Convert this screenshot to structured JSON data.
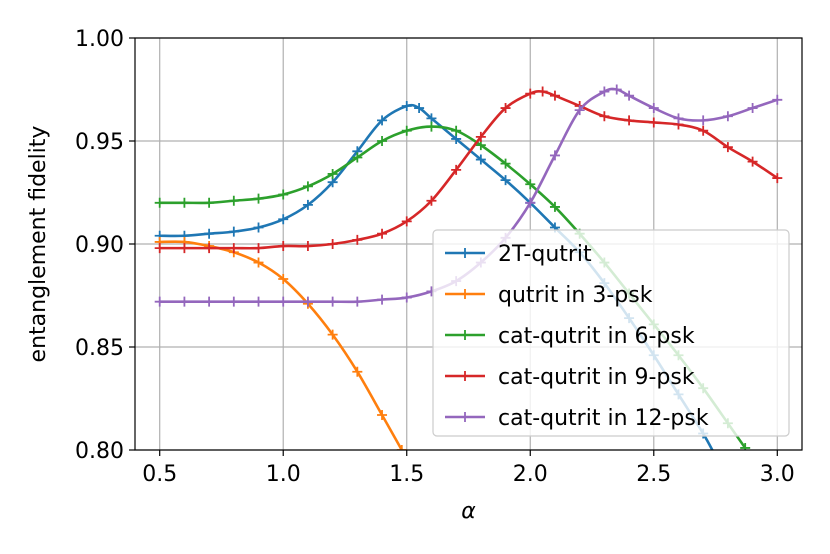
{
  "chart_data": {
    "type": "line",
    "title": "",
    "xlabel": "α",
    "ylabel": "entanglement fidelity",
    "xlim": [
      0.4,
      3.1
    ],
    "ylim": [
      0.8,
      1.0
    ],
    "xticks": [
      0.5,
      1.0,
      1.5,
      2.0,
      2.5,
      3.0
    ],
    "xtick_labels": [
      "0.5",
      "1.0",
      "1.5",
      "2.0",
      "2.5",
      "3.0"
    ],
    "yticks": [
      0.8,
      0.85,
      0.9,
      0.95,
      1.0
    ],
    "ytick_labels": [
      "0.80",
      "0.85",
      "0.90",
      "0.95",
      "1.00"
    ],
    "grid": true,
    "legend_position": "lower-right",
    "marker": "+",
    "series": [
      {
        "name": "2T-qutrit",
        "color": "#1f77b4",
        "x": [
          0.5,
          0.6,
          0.7,
          0.8,
          0.9,
          1.0,
          1.1,
          1.2,
          1.3,
          1.4,
          1.5,
          1.55,
          1.6,
          1.7,
          1.8,
          1.9,
          2.0,
          2.1,
          2.2,
          2.3,
          2.4,
          2.5,
          2.6,
          2.7,
          2.75
        ],
        "y": [
          0.904,
          0.904,
          0.905,
          0.906,
          0.908,
          0.912,
          0.919,
          0.93,
          0.945,
          0.96,
          0.967,
          0.966,
          0.961,
          0.951,
          0.941,
          0.931,
          0.92,
          0.908,
          0.896,
          0.881,
          0.864,
          0.846,
          0.827,
          0.808,
          0.797
        ]
      },
      {
        "name": "qutrit in 3-psk",
        "color": "#ff7f0e",
        "x": [
          0.5,
          0.6,
          0.7,
          0.8,
          0.9,
          1.0,
          1.1,
          1.2,
          1.3,
          1.4,
          1.48
        ],
        "y": [
          0.901,
          0.901,
          0.899,
          0.896,
          0.891,
          0.883,
          0.871,
          0.856,
          0.838,
          0.817,
          0.8
        ]
      },
      {
        "name": "cat-qutrit in 6-psk",
        "color": "#2ca02c",
        "x": [
          0.5,
          0.6,
          0.7,
          0.8,
          0.9,
          1.0,
          1.1,
          1.2,
          1.3,
          1.4,
          1.5,
          1.6,
          1.7,
          1.8,
          1.9,
          2.0,
          2.1,
          2.2,
          2.3,
          2.4,
          2.5,
          2.6,
          2.7,
          2.8,
          2.87
        ],
        "y": [
          0.92,
          0.92,
          0.92,
          0.921,
          0.922,
          0.924,
          0.928,
          0.934,
          0.942,
          0.95,
          0.955,
          0.957,
          0.955,
          0.948,
          0.939,
          0.929,
          0.918,
          0.905,
          0.891,
          0.876,
          0.861,
          0.846,
          0.83,
          0.813,
          0.801
        ]
      },
      {
        "name": "cat-qutrit in 9-psk",
        "color": "#d62728",
        "x": [
          0.5,
          0.6,
          0.7,
          0.8,
          0.9,
          1.0,
          1.1,
          1.2,
          1.3,
          1.4,
          1.5,
          1.6,
          1.7,
          1.8,
          1.9,
          2.0,
          2.05,
          2.1,
          2.2,
          2.3,
          2.4,
          2.5,
          2.6,
          2.7,
          2.8,
          2.9,
          3.0
        ],
        "y": [
          0.898,
          0.898,
          0.898,
          0.898,
          0.898,
          0.899,
          0.899,
          0.9,
          0.902,
          0.905,
          0.911,
          0.921,
          0.936,
          0.952,
          0.966,
          0.973,
          0.974,
          0.972,
          0.967,
          0.962,
          0.96,
          0.959,
          0.958,
          0.955,
          0.947,
          0.94,
          0.932
        ]
      },
      {
        "name": "cat-qutrit in 12-psk",
        "color": "#9467bd",
        "x": [
          0.5,
          0.6,
          0.7,
          0.8,
          0.9,
          1.0,
          1.1,
          1.2,
          1.3,
          1.4,
          1.5,
          1.6,
          1.7,
          1.8,
          1.9,
          2.0,
          2.1,
          2.2,
          2.3,
          2.35,
          2.4,
          2.5,
          2.6,
          2.7,
          2.8,
          2.9,
          3.0
        ],
        "y": [
          0.872,
          0.872,
          0.872,
          0.872,
          0.872,
          0.872,
          0.872,
          0.872,
          0.872,
          0.873,
          0.874,
          0.877,
          0.882,
          0.891,
          0.903,
          0.92,
          0.943,
          0.965,
          0.974,
          0.975,
          0.972,
          0.966,
          0.961,
          0.96,
          0.962,
          0.966,
          0.97
        ]
      }
    ]
  }
}
